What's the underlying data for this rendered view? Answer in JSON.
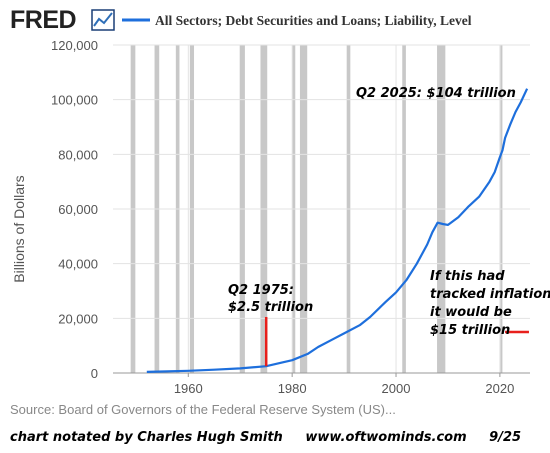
{
  "header": {
    "logo_text": "FRED",
    "logo_icon": "fred-sparkline-icon",
    "series_label": "All Sectors; Debt Securities and Loans; Liability, Level",
    "series_color": "#1e6fdc"
  },
  "source": "Source: Board of Governors of the Federal Reserve System (US)...",
  "footer": {
    "author": "chart notated by Charles Hugh Smith",
    "website": "www.oftwominds.com",
    "date": "9/25"
  },
  "annotations": {
    "q2_2025": "Q2 2025: $104 trillion",
    "q2_1975_line1": "Q2 1975:",
    "q2_1975_line2": "$2.5 trillion",
    "inflation_line1": "If this had",
    "inflation_line2": "tracked inflation,",
    "inflation_line3": "it would be",
    "inflation_line4": "$15 trillion",
    "marker_color": "#e8201c"
  },
  "chart_data": {
    "type": "line",
    "ylabel": "Billions of Dollars",
    "xlim": [
      1945.5,
      2025.8
    ],
    "ylim": [
      0,
      120000
    ],
    "yticks": [
      0,
      20000,
      40000,
      60000,
      80000,
      100000,
      120000
    ],
    "ytick_labels": [
      "0",
      "20,000",
      "40,000",
      "60,000",
      "80,000",
      "100,000",
      "120,000"
    ],
    "xticks": [
      1960,
      1980,
      2000,
      2020
    ],
    "xtick_labels": [
      "1960",
      "1980",
      "2000",
      "2020"
    ],
    "grid": true,
    "recession_shading": [
      [
        1948.9,
        1949.8
      ],
      [
        1953.5,
        1954.4
      ],
      [
        1957.6,
        1958.3
      ],
      [
        1960.3,
        1961.1
      ],
      [
        1969.9,
        1970.9
      ],
      [
        1973.9,
        1975.2
      ],
      [
        1980.0,
        1980.6
      ],
      [
        1981.5,
        1982.9
      ],
      [
        1990.5,
        1991.2
      ],
      [
        2001.2,
        2001.9
      ],
      [
        2007.9,
        2009.5
      ],
      [
        2020.1,
        2020.4
      ]
    ],
    "series": [
      {
        "color": "#1e6fdc",
        "x": [
          1952,
          1955,
          1960,
          1965,
          1970,
          1975,
          1978,
          1980,
          1983,
          1985,
          1988,
          1990,
          1993,
          1995,
          1998,
          2000,
          2002,
          2004,
          2006,
          2007,
          2008,
          2009,
          2010,
          2012,
          2014,
          2016,
          2018,
          2019,
          2020,
          2020.5,
          2021,
          2022,
          2023,
          2024,
          2025.25
        ],
        "y": [
          400,
          550,
          800,
          1200,
          1700,
          2500,
          3800,
          4700,
          7000,
          9500,
          12500,
          14500,
          17500,
          20500,
          26000,
          29500,
          34000,
          40000,
          47000,
          51500,
          55000,
          54500,
          54200,
          57000,
          61000,
          64500,
          70000,
          73500,
          79000,
          81500,
          86000,
          91000,
          95500,
          99000,
          104000
        ]
      }
    ],
    "markers": [
      {
        "x": 1975,
        "y_from": 2500,
        "y_to": 20500
      },
      {
        "x_from": 2021,
        "x_to": 2025.6,
        "y": 15000
      }
    ]
  }
}
